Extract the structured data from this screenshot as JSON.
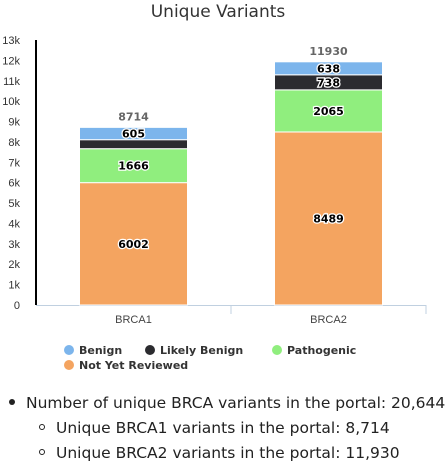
{
  "chart_data": {
    "type": "bar",
    "stacked": true,
    "title": "Unique Variants",
    "xlabel": "",
    "ylabel": "",
    "categories": [
      "BRCA1",
      "BRCA2"
    ],
    "ylim": [
      0,
      13000
    ],
    "yticks": [
      {
        "value": 0,
        "label": "0"
      },
      {
        "value": 1000,
        "label": "1k"
      },
      {
        "value": 2000,
        "label": "2k"
      },
      {
        "value": 3000,
        "label": "3k"
      },
      {
        "value": 4000,
        "label": "4k"
      },
      {
        "value": 5000,
        "label": "5k"
      },
      {
        "value": 6000,
        "label": "6k"
      },
      {
        "value": 7000,
        "label": "7k"
      },
      {
        "value": 8000,
        "label": "8k"
      },
      {
        "value": 9000,
        "label": "9k"
      },
      {
        "value": 10000,
        "label": "10k"
      },
      {
        "value": 11000,
        "label": "11k"
      },
      {
        "value": 12000,
        "label": "12k"
      },
      {
        "value": 13000,
        "label": "13k"
      }
    ],
    "totals": [
      "8714",
      "11930"
    ],
    "series": [
      {
        "name": "Not Yet Reviewed",
        "color": "#f4a460",
        "values": [
          6002,
          8489
        ],
        "labels": [
          "6002",
          "8489"
        ]
      },
      {
        "name": "Pathogenic",
        "color": "#90ee7e",
        "values": [
          1666,
          2065
        ],
        "labels": [
          "1666",
          "2065"
        ]
      },
      {
        "name": "Likely Benign",
        "color": "#2b2b2f",
        "values": [
          441,
          738
        ],
        "labels": [
          "",
          "738"
        ]
      },
      {
        "name": "Benign",
        "color": "#7cb5ec",
        "values": [
          605,
          638
        ],
        "labels": [
          "605",
          "638"
        ]
      }
    ],
    "legend_order": [
      "Benign",
      "Likely Benign",
      "Pathogenic",
      "Not Yet Reviewed"
    ],
    "legend_position": "bottom",
    "grid": false
  },
  "summary": {
    "total": "Number of unique BRCA variants in the portal: 20,644",
    "brca1": "Unique BRCA1 variants in the portal: 8,714",
    "brca2": "Unique BRCA2 variants in the portal: 11,930"
  }
}
